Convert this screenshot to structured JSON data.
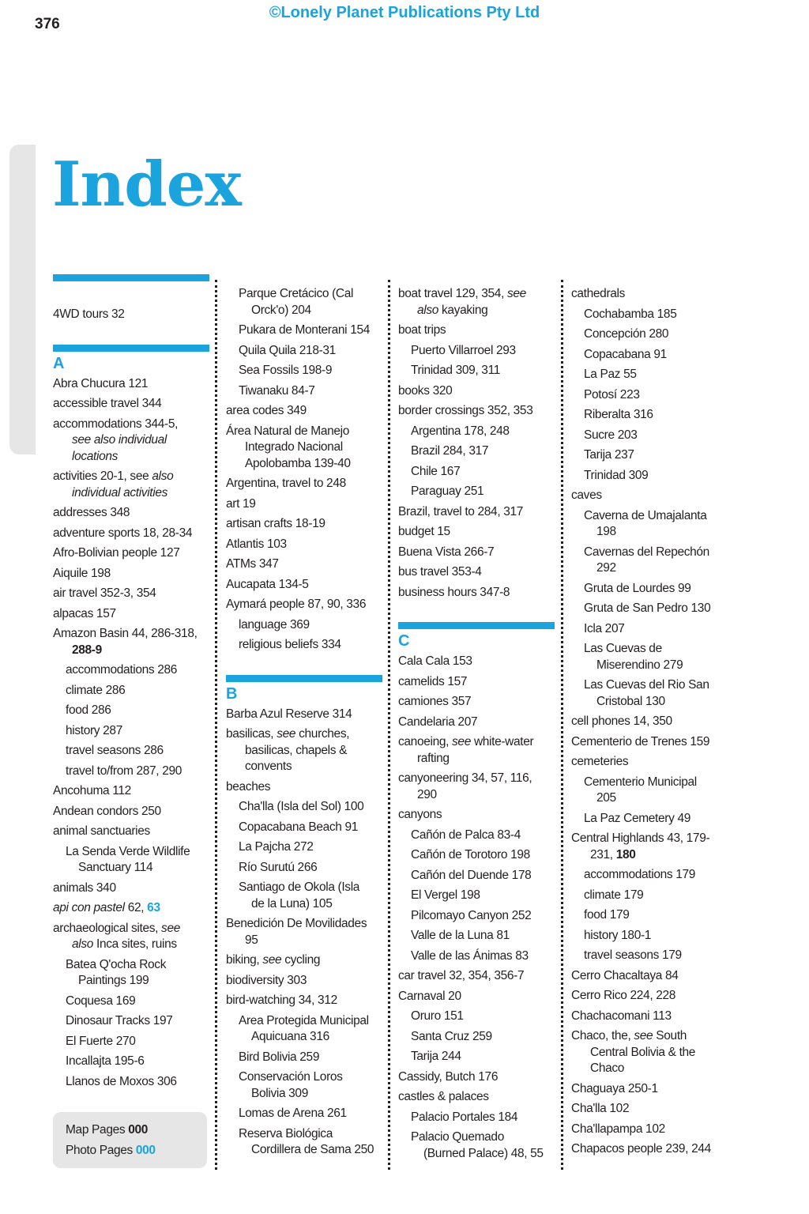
{
  "header": {
    "page_number": "376",
    "copyright": "©Lonely Planet Publications Pty Ltd",
    "title": "Index"
  },
  "colors": {
    "accent": "#1aa3dc",
    "tab": "#e6e6e6"
  },
  "key": {
    "map_label": "Map Pages ",
    "map_value": "000",
    "photo_label": "Photo Pages ",
    "photo_value": "000"
  },
  "columns": [
    {
      "items": [
        {
          "type": "bar"
        },
        {
          "type": "gap"
        },
        {
          "lvl": 0,
          "text": "4WD tours 32"
        },
        {
          "type": "gap"
        },
        {
          "type": "bar"
        },
        {
          "type": "letter",
          "text": "A"
        },
        {
          "lvl": 0,
          "text": "Abra Chucura 121"
        },
        {
          "lvl": 0,
          "text": "accessible travel 344"
        },
        {
          "lvl": 0,
          "parts": [
            {
              "t": "accommodations 344-5,\n"
            },
            {
              "t": "see also individual\nlocations",
              "s": "i"
            }
          ]
        },
        {
          "lvl": 0,
          "parts": [
            {
              "t": "activities 20-1, see "
            },
            {
              "t": "also\nindividual activities",
              "s": "i"
            }
          ]
        },
        {
          "lvl": 0,
          "text": "addresses 348"
        },
        {
          "lvl": 0,
          "text": "adventure sports 18, 28-34"
        },
        {
          "lvl": 0,
          "text": "Afro-Bolivian people 127"
        },
        {
          "lvl": 0,
          "text": "Aiquile 198"
        },
        {
          "lvl": 0,
          "text": "air travel 352-3, 354"
        },
        {
          "lvl": 0,
          "text": "alpacas 157"
        },
        {
          "lvl": 0,
          "parts": [
            {
              "t": "Amazon Basin 44, 286-318,\n"
            },
            {
              "t": "288-9",
              "s": "b"
            }
          ]
        },
        {
          "lvl": 1,
          "text": "accommodations 286"
        },
        {
          "lvl": 1,
          "text": "climate 286"
        },
        {
          "lvl": 1,
          "text": "food 286"
        },
        {
          "lvl": 1,
          "text": "history 287"
        },
        {
          "lvl": 1,
          "text": "travel seasons 286"
        },
        {
          "lvl": 1,
          "text": "travel to/from 287, 290"
        },
        {
          "lvl": 0,
          "text": "Ancohuma 112"
        },
        {
          "lvl": 0,
          "text": "Andean condors 250"
        },
        {
          "lvl": 0,
          "text": "animal sanctuaries"
        },
        {
          "lvl": 1,
          "text": "La Senda Verde Wildlife\nSanctuary 114"
        },
        {
          "lvl": 0,
          "text": "animals 340"
        },
        {
          "lvl": 0,
          "parts": [
            {
              "t": "api con pastel",
              "s": "i"
            },
            {
              "t": " 62, "
            },
            {
              "t": "63",
              "s": "bc"
            }
          ]
        },
        {
          "lvl": 0,
          "parts": [
            {
              "t": "archaeological sites, "
            },
            {
              "t": "see\nalso",
              "s": "i"
            },
            {
              "t": " Inca sites, ruins"
            }
          ]
        },
        {
          "lvl": 1,
          "text": "Batea Q'ocha Rock\nPaintings 199"
        },
        {
          "lvl": 1,
          "text": "Coquesa 169"
        },
        {
          "lvl": 1,
          "text": "Dinosaur Tracks 197"
        },
        {
          "lvl": 1,
          "text": "El Fuerte 270"
        },
        {
          "lvl": 1,
          "text": "Incallajta 195-6"
        },
        {
          "lvl": 1,
          "text": "Llanos de Moxos 306"
        }
      ]
    },
    {
      "items": [
        {
          "lvl": 1,
          "text": "Parque Cretácico (Cal\nOrck'o) 204"
        },
        {
          "lvl": 1,
          "text": "Pukara de Monterani 154"
        },
        {
          "lvl": 1,
          "text": "Quila Quila 218-31"
        },
        {
          "lvl": 1,
          "text": "Sea Fossils 198-9"
        },
        {
          "lvl": 1,
          "text": "Tiwanaku 84-7"
        },
        {
          "lvl": 0,
          "text": "area codes 349"
        },
        {
          "lvl": 0,
          "text": "Área Natural de Manejo\nIntegrado Nacional\nApolobamba 139-40"
        },
        {
          "lvl": 0,
          "text": "Argentina, travel to 248"
        },
        {
          "lvl": 0,
          "text": "art 19"
        },
        {
          "lvl": 0,
          "text": "artisan crafts 18-19"
        },
        {
          "lvl": 0,
          "text": "Atlantis 103"
        },
        {
          "lvl": 0,
          "text": "ATMs 347"
        },
        {
          "lvl": 0,
          "text": "Aucapata 134-5"
        },
        {
          "lvl": 0,
          "text": "Aymará people 87, 90, 336"
        },
        {
          "lvl": 1,
          "text": "language 369"
        },
        {
          "lvl": 1,
          "text": "religious beliefs 334"
        },
        {
          "type": "gap"
        },
        {
          "type": "bar"
        },
        {
          "type": "letter",
          "text": "B"
        },
        {
          "lvl": 0,
          "text": "Barba Azul Reserve 314"
        },
        {
          "lvl": 0,
          "parts": [
            {
              "t": "basilicas, "
            },
            {
              "t": "see",
              "s": "i"
            },
            {
              "t": " churches,\nbasilicas, chapels &\nconvents"
            }
          ]
        },
        {
          "lvl": 0,
          "text": "beaches"
        },
        {
          "lvl": 1,
          "text": "Cha'lla (Isla del Sol) 100"
        },
        {
          "lvl": 1,
          "text": "Copacabana Beach 91"
        },
        {
          "lvl": 1,
          "text": "La Pajcha 272"
        },
        {
          "lvl": 1,
          "text": "Río Surutú 266"
        },
        {
          "lvl": 1,
          "text": "Santiago de Okola (Isla\nde la Luna) 105"
        },
        {
          "lvl": 0,
          "text": "Benedición De Movilidades\n95"
        },
        {
          "lvl": 0,
          "parts": [
            {
              "t": "biking, "
            },
            {
              "t": "see",
              "s": "i"
            },
            {
              "t": " cycling"
            }
          ]
        },
        {
          "lvl": 0,
          "text": "biodiversity 303"
        },
        {
          "lvl": 0,
          "text": "bird-watching 34, 312"
        },
        {
          "lvl": 1,
          "text": "Area Protegida Municipal\nAquicuana 316"
        },
        {
          "lvl": 1,
          "text": "Bird Bolivia 259"
        },
        {
          "lvl": 1,
          "text": "Conservación Loros\nBolivia 309"
        },
        {
          "lvl": 1,
          "text": "Lomas de Arena 261"
        },
        {
          "lvl": 1,
          "text": "Reserva Biológica\nCordillera de Sama 250"
        }
      ]
    },
    {
      "items": [
        {
          "lvl": 0,
          "parts": [
            {
              "t": "boat travel 129, 354, "
            },
            {
              "t": "see\nalso",
              "s": "i"
            },
            {
              "t": " kayaking"
            }
          ]
        },
        {
          "lvl": 0,
          "text": "boat trips"
        },
        {
          "lvl": 1,
          "text": "Puerto Villarroel 293"
        },
        {
          "lvl": 1,
          "text": "Trinidad 309, 311"
        },
        {
          "lvl": 0,
          "text": "books 320"
        },
        {
          "lvl": 0,
          "text": "border crossings 352, 353"
        },
        {
          "lvl": 1,
          "text": "Argentina 178, 248"
        },
        {
          "lvl": 1,
          "text": "Brazil 284, 317"
        },
        {
          "lvl": 1,
          "text": "Chile 167"
        },
        {
          "lvl": 1,
          "text": "Paraguay 251"
        },
        {
          "lvl": 0,
          "text": "Brazil, travel to 284, 317"
        },
        {
          "lvl": 0,
          "text": "budget 15"
        },
        {
          "lvl": 0,
          "text": "Buena Vista 266-7"
        },
        {
          "lvl": 0,
          "text": "bus travel 353-4"
        },
        {
          "lvl": 0,
          "text": "business hours 347-8"
        },
        {
          "type": "gap"
        },
        {
          "type": "bar"
        },
        {
          "type": "letter",
          "text": "C"
        },
        {
          "lvl": 0,
          "text": "Cala Cala 153"
        },
        {
          "lvl": 0,
          "text": "camelids 157"
        },
        {
          "lvl": 0,
          "text": "camiones 357"
        },
        {
          "lvl": 0,
          "text": "Candelaria 207"
        },
        {
          "lvl": 0,
          "parts": [
            {
              "t": "canoeing, "
            },
            {
              "t": "see",
              "s": "i"
            },
            {
              "t": " white-water\nrafting"
            }
          ]
        },
        {
          "lvl": 0,
          "text": "canyoneering 34, 57, 116,\n290"
        },
        {
          "lvl": 0,
          "text": "canyons"
        },
        {
          "lvl": 1,
          "text": "Cañón de Palca 83-4"
        },
        {
          "lvl": 1,
          "text": "Cañón de Torotoro 198"
        },
        {
          "lvl": 1,
          "text": "Cañón del Duende 178"
        },
        {
          "lvl": 1,
          "text": "El Vergel 198"
        },
        {
          "lvl": 1,
          "text": "Pilcomayo Canyon 252"
        },
        {
          "lvl": 1,
          "text": "Valle de la Luna 81"
        },
        {
          "lvl": 1,
          "text": "Valle de las Ánimas 83"
        },
        {
          "lvl": 0,
          "text": "car travel 32, 354, 356-7"
        },
        {
          "lvl": 0,
          "text": "Carnaval 20"
        },
        {
          "lvl": 1,
          "text": "Oruro 151"
        },
        {
          "lvl": 1,
          "text": "Santa Cruz 259"
        },
        {
          "lvl": 1,
          "text": "Tarija 244"
        },
        {
          "lvl": 0,
          "text": "Cassidy, Butch 176"
        },
        {
          "lvl": 0,
          "text": "castles & palaces"
        },
        {
          "lvl": 1,
          "text": "Palacio Portales 184"
        },
        {
          "lvl": 1,
          "text": "Palacio Quemado\n(Burned Palace) 48, 55"
        }
      ]
    },
    {
      "items": [
        {
          "lvl": 0,
          "text": "cathedrals"
        },
        {
          "lvl": 1,
          "text": "Cochabamba 185"
        },
        {
          "lvl": 1,
          "text": "Concepción 280"
        },
        {
          "lvl": 1,
          "text": "Copacabana 91"
        },
        {
          "lvl": 1,
          "text": "La Paz 55"
        },
        {
          "lvl": 1,
          "text": "Potosí 223"
        },
        {
          "lvl": 1,
          "text": "Riberalta 316"
        },
        {
          "lvl": 1,
          "text": "Sucre 203"
        },
        {
          "lvl": 1,
          "text": "Tarija 237"
        },
        {
          "lvl": 1,
          "text": "Trinidad 309"
        },
        {
          "lvl": 0,
          "text": "caves"
        },
        {
          "lvl": 1,
          "text": "Caverna de Umajalanta\n198"
        },
        {
          "lvl": 1,
          "text": "Cavernas del Repechón\n292"
        },
        {
          "lvl": 1,
          "text": "Gruta de Lourdes 99"
        },
        {
          "lvl": 1,
          "text": "Gruta de San Pedro 130"
        },
        {
          "lvl": 1,
          "text": "Icla 207"
        },
        {
          "lvl": 1,
          "text": "Las Cuevas de\nMiserendino 279"
        },
        {
          "lvl": 1,
          "text": "Las Cuevas del Rio San\nCristobal 130"
        },
        {
          "lvl": 0,
          "text": "cell phones 14, 350"
        },
        {
          "lvl": 0,
          "text": "Cementerio de Trenes 159"
        },
        {
          "lvl": 0,
          "text": "cemeteries"
        },
        {
          "lvl": 1,
          "text": "Cementerio Municipal\n205"
        },
        {
          "lvl": 1,
          "text": "La Paz Cemetery 49"
        },
        {
          "lvl": 0,
          "parts": [
            {
              "t": "Central Highlands 43, 179-\n231, "
            },
            {
              "t": "180",
              "s": "b"
            }
          ]
        },
        {
          "lvl": 1,
          "text": "accommodations 179"
        },
        {
          "lvl": 1,
          "text": "climate 179"
        },
        {
          "lvl": 1,
          "text": "food 179"
        },
        {
          "lvl": 1,
          "text": "history 180-1"
        },
        {
          "lvl": 1,
          "text": "travel seasons 179"
        },
        {
          "lvl": 0,
          "text": "Cerro Chacaltaya 84"
        },
        {
          "lvl": 0,
          "text": "Cerro Rico 224, 228"
        },
        {
          "lvl": 0,
          "text": "Chachacomani 113"
        },
        {
          "lvl": 0,
          "parts": [
            {
              "t": "Chaco, the, "
            },
            {
              "t": "see",
              "s": "i"
            },
            {
              "t": " South\nCentral Bolivia & the\nChaco"
            }
          ]
        },
        {
          "lvl": 0,
          "text": "Chaguaya 250-1"
        },
        {
          "lvl": 0,
          "text": "Cha'lla 102"
        },
        {
          "lvl": 0,
          "text": "Cha'llapampa 102"
        },
        {
          "lvl": 0,
          "text": "Chapacos people 239, 244"
        }
      ]
    }
  ]
}
